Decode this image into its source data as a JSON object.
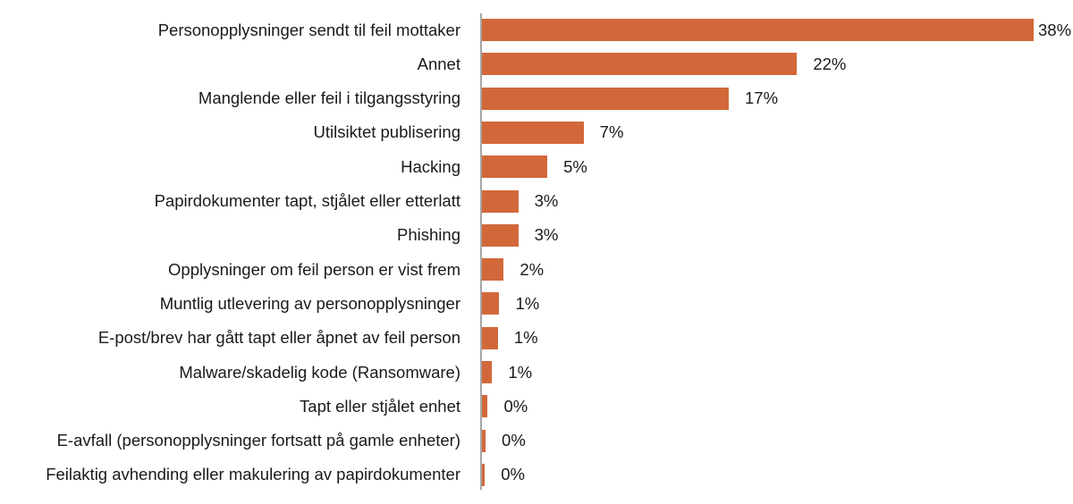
{
  "chart_data": {
    "type": "bar",
    "orientation": "horizontal",
    "title": "",
    "xlabel": "",
    "ylabel": "",
    "grid": false,
    "legend": null,
    "bar_color": "#D2683A",
    "axis_color": "#a6a6a6",
    "xlim": [
      0,
      38
    ],
    "categories": [
      "Personopplysninger sendt til feil mottaker",
      "Annet",
      "Manglende eller feil i tilgangsstyring",
      "Utilsiktet publisering",
      "Hacking",
      "Papirdokumenter tapt, stjålet eller etterlatt",
      "Phishing",
      "Opplysninger om feil person er vist frem",
      "Muntlig utlevering av personopplysninger",
      "E-post/brev har gått tapt eller åpnet av feil person",
      "Malware/skadelig kode (Ransomware)",
      "Tapt eller stjålet enhet",
      "E-avfall (personopplysninger fortsatt på gamle enheter)",
      "Feilaktig avhending eller makulering av papirdokumenter"
    ],
    "values": [
      38,
      21.7,
      17.0,
      7.0,
      4.5,
      2.5,
      2.5,
      1.5,
      1.2,
      1.1,
      0.7,
      0.4,
      0.25,
      0.2
    ],
    "value_labels": [
      "38%",
      "22%",
      "17%",
      "7%",
      "5%",
      "3%",
      "3%",
      "2%",
      "1%",
      "1%",
      "1%",
      "0%",
      "0%",
      "0%"
    ]
  }
}
